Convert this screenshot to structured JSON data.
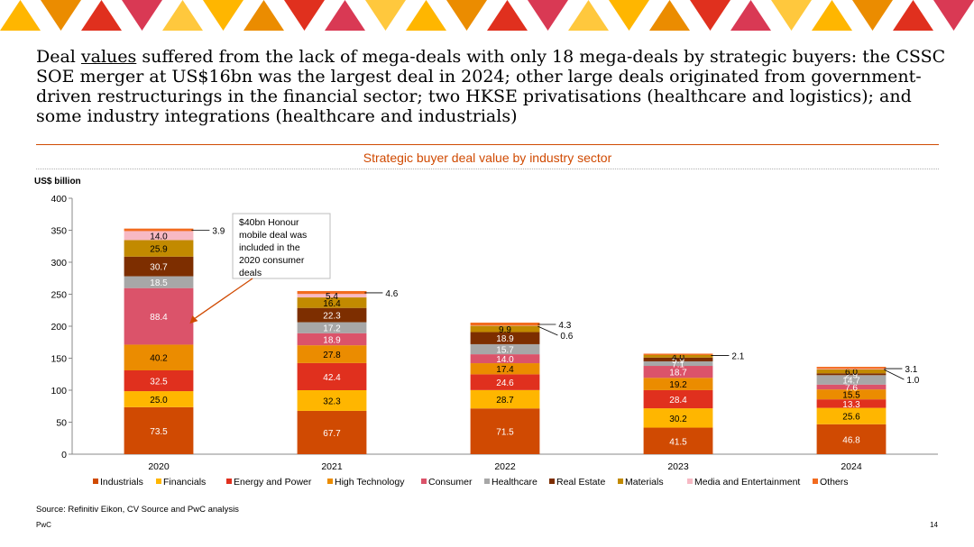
{
  "banner": {
    "colors": [
      "#ffb600",
      "#eb8c00",
      "#e0301e",
      "#d93954",
      "#ffc83d"
    ]
  },
  "headline": {
    "word_underlined": "values",
    "text_before": "Deal ",
    "text_after": " suffered from the lack of mega-deals with only 18 mega-deals by strategic buyers: the CSSC SOE merger at US$16bn was the largest deal in 2024; other large deals originated from government-driven restructurings in the financial sector; two HKSE privatisations (healthcare and logistics); and some industry integrations (healthcare and industrials)"
  },
  "chart_data": {
    "type": "bar",
    "stacked": true,
    "title": "Strategic buyer deal value by industry sector",
    "ylabel": "US$ billion",
    "xlabel": "",
    "ylim": [
      0,
      400
    ],
    "yticks": [
      0,
      50,
      100,
      150,
      200,
      250,
      300,
      350,
      400
    ],
    "categories": [
      "2020",
      "2021",
      "2022",
      "2023",
      "2024"
    ],
    "series": [
      {
        "name": "Industrials",
        "color": "#d04a02",
        "values": [
          73.5,
          67.7,
          71.5,
          41.5,
          46.8
        ]
      },
      {
        "name": "Financials",
        "color": "#ffb600",
        "values": [
          25.0,
          32.3,
          28.7,
          30.2,
          25.6
        ]
      },
      {
        "name": "Energy and Power",
        "color": "#e0301e",
        "values": [
          32.5,
          42.4,
          24.6,
          28.4,
          13.3
        ]
      },
      {
        "name": "High Technology",
        "color": "#eb8c00",
        "values": [
          40.2,
          27.8,
          17.4,
          19.2,
          15.5
        ]
      },
      {
        "name": "Consumer",
        "color": "#db536a",
        "values": [
          88.4,
          18.9,
          14.0,
          18.7,
          7.6
        ]
      },
      {
        "name": "Healthcare",
        "color": "#a7a7a7",
        "values": [
          18.5,
          17.2,
          15.7,
          7.1,
          14.7
        ]
      },
      {
        "name": "Real Estate",
        "color": "#7d2e00",
        "values": [
          30.7,
          22.3,
          18.9,
          5.9,
          2.9
        ]
      },
      {
        "name": "Materials",
        "color": "#c28a00",
        "values": [
          25.9,
          16.4,
          9.9,
          4.0,
          6.0
        ]
      },
      {
        "name": "Media and Entertainment",
        "color": "#f7b9c4",
        "values": [
          14.0,
          5.4,
          0.6,
          0,
          1.0
        ]
      },
      {
        "name": "Others",
        "color": "#f26b1f",
        "values": [
          3.9,
          4.6,
          4.3,
          2.1,
          3.1
        ]
      }
    ],
    "annotation": {
      "text_lines": [
        "$40bn Honour",
        "mobile deal was",
        "included in the",
        "2020 consumer",
        "deals"
      ],
      "points_to": {
        "category": "2020",
        "series": "Consumer"
      }
    },
    "legend": "bottom"
  },
  "source": "Source: Refinitiv Eikon, CV Source and PwC analysis",
  "footer": {
    "brand": "PwC",
    "page": "14"
  }
}
